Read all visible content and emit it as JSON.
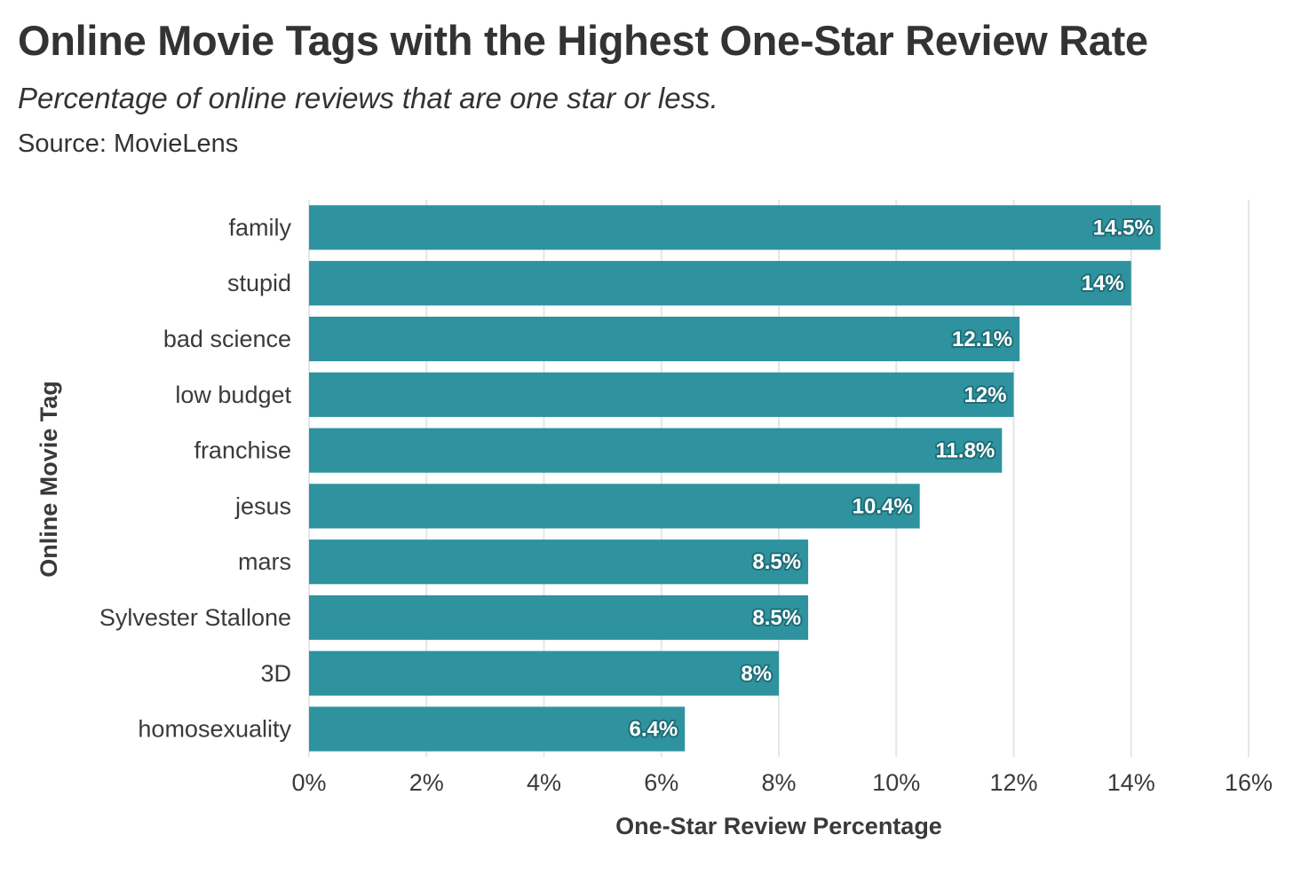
{
  "header": {
    "title": "Online Movie Tags with the Highest One-Star Review Rate",
    "subtitle": "Percentage of online reviews that are one star or less.",
    "source": "Source: MovieLens"
  },
  "chart_data": {
    "type": "bar",
    "orientation": "horizontal",
    "categories": [
      "family",
      "stupid",
      "bad science",
      "low budget",
      "franchise",
      "jesus",
      "mars",
      "Sylvester Stallone",
      "3D",
      "homosexuality"
    ],
    "values": [
      14.5,
      14.0,
      12.1,
      12.0,
      11.8,
      10.4,
      8.5,
      8.5,
      8.0,
      6.4
    ],
    "data_labels": [
      "14.5%",
      "14%",
      "12.1%",
      "12%",
      "11.8%",
      "10.4%",
      "8.5%",
      "8.5%",
      "8%",
      "6.4%"
    ],
    "xlabel": "One-Star Review Percentage",
    "ylabel": "Online Movie Tag",
    "xlim": [
      0,
      16
    ],
    "x_ticks": [
      0,
      2,
      4,
      6,
      8,
      10,
      12,
      14,
      16
    ],
    "x_tick_labels": [
      "0%",
      "2%",
      "4%",
      "6%",
      "8%",
      "10%",
      "12%",
      "14%",
      "16%"
    ],
    "grid": "vertical",
    "legend": "none",
    "bar_color": "#2e939f",
    "label_outline_color": "#1f6f78",
    "grid_color": "#e6e6e6"
  }
}
